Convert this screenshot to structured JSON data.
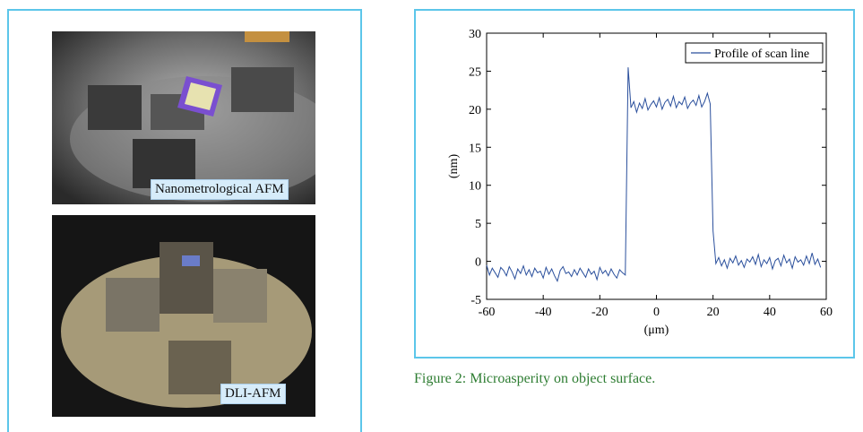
{
  "figure1": {
    "labels": [
      "Nanometrological AFM",
      "DLI-AFM"
    ]
  },
  "chart_data": {
    "type": "line",
    "x": [
      -60,
      -59,
      -58,
      -57,
      -56,
      -55,
      -54,
      -53,
      -52,
      -51,
      -50,
      -49,
      -48,
      -47,
      -46,
      -45,
      -44,
      -43,
      -42,
      -41,
      -40,
      -39,
      -38,
      -37,
      -36,
      -35,
      -34,
      -33,
      -32,
      -31,
      -30,
      -29,
      -28,
      -27,
      -26,
      -25,
      -24,
      -23,
      -22,
      -21,
      -20,
      -19,
      -18,
      -17,
      -16,
      -15,
      -14,
      -13,
      -12,
      -11,
      -10,
      -9,
      -8,
      -7,
      -6,
      -5,
      -4,
      -3,
      -2,
      -1,
      0,
      1,
      2,
      3,
      4,
      5,
      6,
      7,
      8,
      9,
      10,
      11,
      12,
      13,
      14,
      15,
      16,
      17,
      18,
      19,
      20,
      21,
      22,
      23,
      24,
      25,
      26,
      27,
      28,
      29,
      30,
      31,
      32,
      33,
      34,
      35,
      36,
      37,
      38,
      39,
      40,
      41,
      42,
      43,
      44,
      45,
      46,
      47,
      48,
      49,
      50,
      51,
      52,
      53,
      54,
      55,
      56,
      57,
      58
    ],
    "series": [
      {
        "name": "Profile of scan line",
        "color": "#2a4f9c",
        "values": [
          -0.5,
          -1.8,
          -0.9,
          -1.5,
          -2.1,
          -0.8,
          -1.2,
          -1.9,
          -0.7,
          -1.4,
          -2.3,
          -1.0,
          -1.6,
          -0.6,
          -1.8,
          -1.1,
          -2.0,
          -0.9,
          -1.5,
          -1.3,
          -2.2,
          -0.8,
          -1.7,
          -1.0,
          -1.9,
          -2.6,
          -1.2,
          -0.7,
          -1.6,
          -1.4,
          -2.0,
          -1.1,
          -1.8,
          -0.9,
          -1.5,
          -2.1,
          -1.0,
          -1.7,
          -1.3,
          -2.4,
          -0.8,
          -1.6,
          -1.2,
          -1.9,
          -1.0,
          -1.7,
          -2.2,
          -1.1,
          -1.5,
          -1.8,
          25.5,
          20.2,
          21.0,
          19.6,
          20.8,
          20.1,
          21.4,
          19.9,
          20.6,
          21.1,
          20.3,
          21.5,
          20.0,
          20.9,
          21.3,
          20.4,
          21.7,
          20.2,
          21.0,
          20.6,
          21.6,
          20.1,
          20.8,
          21.2,
          20.5,
          21.8,
          20.3,
          21.0,
          22.1,
          20.7,
          4,
          -0.3,
          0.5,
          -0.6,
          0.2,
          -0.9,
          0.4,
          -0.2,
          0.7,
          -0.5,
          0.1,
          -0.8,
          0.3,
          -0.1,
          0.6,
          -0.4,
          0.9,
          -0.7,
          0.2,
          -0.3,
          0.5,
          -1.0,
          0.1,
          0.4,
          -0.6,
          0.8,
          -0.2,
          0.3,
          -0.9,
          0.6,
          -0.1,
          0.2,
          -0.5,
          0.7,
          -0.3,
          1.1,
          -0.4,
          0.3,
          -0.8
        ]
      }
    ],
    "xlabel": "(μm)",
    "ylabel": "(nm)",
    "xlim": [
      -60,
      60
    ],
    "xticks": [
      -60,
      -40,
      -20,
      0,
      20,
      40,
      60
    ],
    "ylim": [
      -5,
      30
    ],
    "yticks": [
      -5,
      0,
      5,
      10,
      15,
      20,
      25,
      30
    ],
    "legend": "upper right"
  },
  "caption": "Figure 2: Microasperity on object surface."
}
